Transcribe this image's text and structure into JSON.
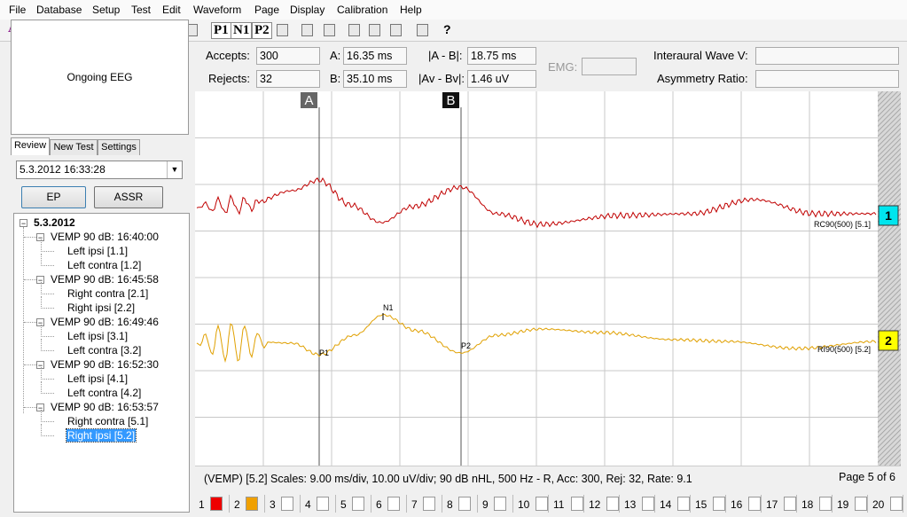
{
  "menu": [
    "File",
    "Database",
    "Setup",
    "Test",
    "Edit",
    "Waveform",
    "Page",
    "Display",
    "Calibration",
    "Help"
  ],
  "toolbar": {
    "labels": [
      "A",
      "P1",
      "N1",
      "P2",
      "?"
    ]
  },
  "left_panel": {
    "preview": "Ongoing EEG",
    "tabs": [
      "Review",
      "New Test",
      "Settings"
    ],
    "session": "5.3.2012 16:33:28",
    "buttons": [
      "EP",
      "ASSR"
    ],
    "tree": {
      "root": "5.3.2012",
      "groups": [
        {
          "label": "VEMP 90 dB: 16:40:00",
          "items": [
            "Left ipsi [1.1]",
            "Left contra [1.2]"
          ]
        },
        {
          "label": "VEMP 90 dB: 16:45:58",
          "items": [
            "Right contra [2.1]",
            "Right ipsi [2.2]"
          ]
        },
        {
          "label": "VEMP 90 dB: 16:49:46",
          "items": [
            "Left ipsi [3.1]",
            "Left contra [3.2]"
          ]
        },
        {
          "label": "VEMP 90 dB: 16:52:30",
          "items": [
            "Left ipsi [4.1]",
            "Left contra [4.2]"
          ]
        },
        {
          "label": "VEMP 90 dB: 16:53:57",
          "items": [
            "Right contra [5.1]",
            "Right ipsi [5.2]"
          ]
        }
      ]
    }
  },
  "fields": [
    {
      "label": "Accepts:",
      "value": "300"
    },
    {
      "label": "Rejects:",
      "value": "32"
    },
    {
      "label": "A:",
      "value": "16.35 ms"
    },
    {
      "label": "B:",
      "value": "35.10 ms"
    },
    {
      "label": "|A - B|:",
      "value": "18.75 ms"
    },
    {
      "label": "|Av - Bv|:",
      "value": "1.46 uV"
    },
    {
      "label": "EMG:"
    },
    {
      "label": "Interaural Wave V:"
    },
    {
      "label": "Asymmetry Ratio:"
    }
  ],
  "cursors": [
    "A",
    "B"
  ],
  "traces": [
    {
      "marker": "1",
      "channel": "RC90(500) [5.1]",
      "color": "#c00000",
      "marker_color": "#00e5ee"
    },
    {
      "marker": "2",
      "channel": "RI90(500) [5.2]",
      "color": "#e0a000",
      "marker_color": "#ffff00",
      "peaks": [
        "N1",
        "P1",
        "P2"
      ]
    }
  ],
  "status": {
    "info": "(VEMP) [5.2]  Scales: 9.00 ms/div,  10.00 uV/div;  90 dB nHL, 500 Hz - R,  Acc: 300,  Rej: 32,  Rate: 9.1",
    "page": "Page 5 of 6"
  },
  "page_tabs": [
    {
      "label": "1",
      "color": "#ee0000"
    },
    {
      "label": "2",
      "color": "#f0a000"
    },
    {
      "label": "3"
    },
    {
      "label": "4"
    },
    {
      "label": "5"
    },
    {
      "label": "6"
    },
    {
      "label": "7"
    },
    {
      "label": "8"
    },
    {
      "label": "9"
    },
    {
      "label": "10"
    },
    {
      "label": "11"
    },
    {
      "label": "12"
    },
    {
      "label": "13"
    },
    {
      "label": "14"
    },
    {
      "label": "15"
    },
    {
      "label": "16"
    },
    {
      "label": "17"
    },
    {
      "label": "18"
    },
    {
      "label": "19"
    },
    {
      "label": "20"
    }
  ]
}
